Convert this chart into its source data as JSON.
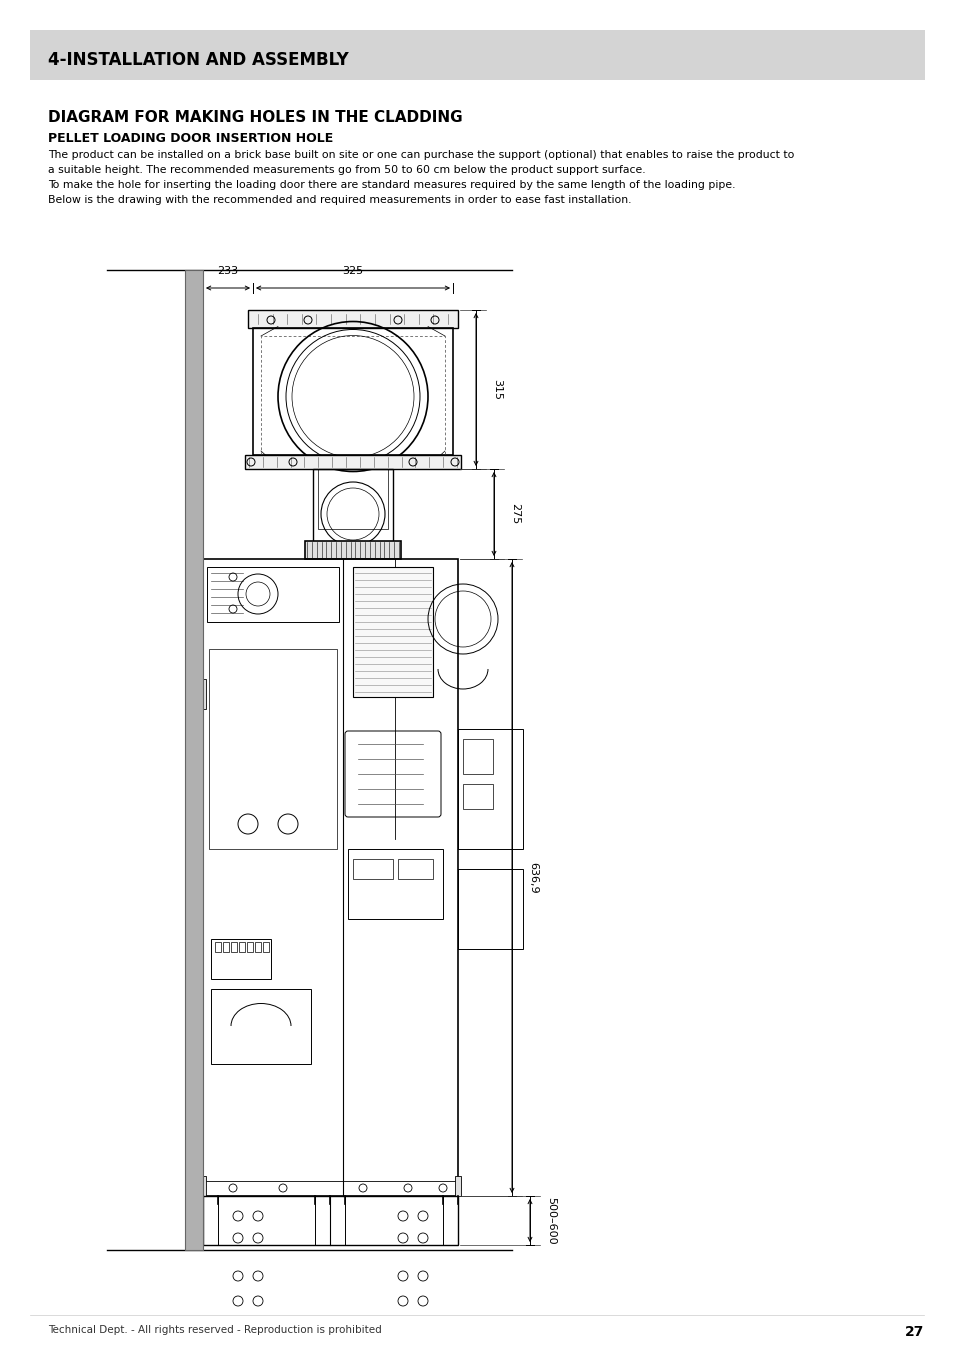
{
  "page_bg": "#ffffff",
  "header_bg": "#d4d4d4",
  "header_text": "4-INSTALLATION AND ASSEMBLY",
  "title1": "DIAGRAM FOR MAKING HOLES IN THE CLADDING",
  "title2": "PELLET LOADING DOOR INSERTION HOLE",
  "body_line1": "The product can be installed on a brick base built on site or one can purchase the support (optional) that enables to raise the product to",
  "body_line2": "a suitable height. The recommended measurements go from 50 to 60 cm below the product support surface.",
  "body_line3": "To make the hole for inserting the loading door there are standard measures required by the same length of the loading pipe.",
  "body_line4": "Below is the drawing with the recommended and required measurements in order to ease fast installation.",
  "footer_text": "Technical Dept. - All rights reserved - Reproduction is prohibited",
  "footer_page": "27",
  "dim_233": "233",
  "dim_325": "325",
  "dim_315": "315",
  "dim_275": "275",
  "dim_636": "636,9",
  "dim_500": "500–600"
}
